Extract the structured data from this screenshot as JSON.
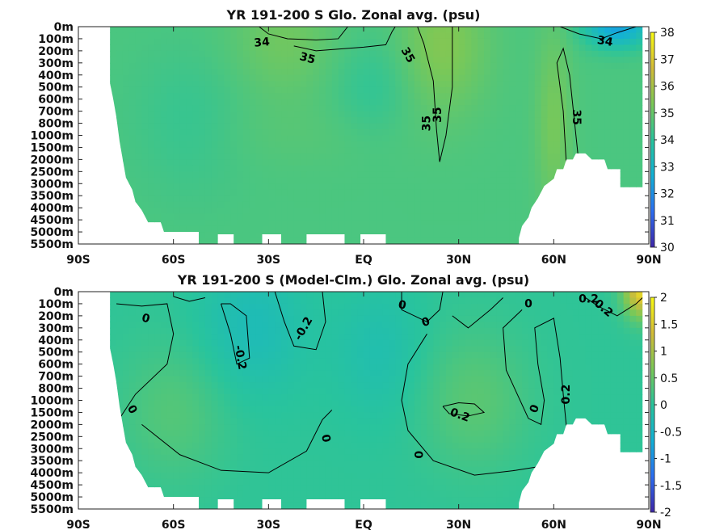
{
  "chart_data": [
    {
      "type": "heatmap",
      "title": "YR 191-200 S Glo. Zonal avg. (psu)",
      "x_ticks": [
        "90S",
        "60S",
        "30S",
        "EQ",
        "30N",
        "60N",
        "90N"
      ],
      "y_ticks": [
        "0m",
        "100m",
        "200m",
        "300m",
        "400m",
        "500m",
        "600m",
        "700m",
        "800m",
        "1000m",
        "1500m",
        "2000m",
        "2500m",
        "3000m",
        "3500m",
        "4000m",
        "4500m",
        "5000m",
        "5500m"
      ],
      "colorbar": {
        "min": 30,
        "max": 38,
        "ticks": [
          "30",
          "31",
          "32",
          "33",
          "34",
          "35",
          "36",
          "37",
          "38"
        ]
      },
      "contour_labels": [
        "34",
        "35",
        "35",
        "35",
        "35",
        "35",
        "34"
      ],
      "colormap": [
        "#3e26a8",
        "#2c6ef2",
        "#12b1d6",
        "#29c49c",
        "#7bc857",
        "#d3bc38",
        "#f9fb15"
      ]
    },
    {
      "type": "heatmap",
      "title": "YR 191-200 S (Model-Clm.) Glo. Zonal avg. (psu)",
      "x_ticks": [
        "90S",
        "60S",
        "30S",
        "EQ",
        "30N",
        "60N",
        "90N"
      ],
      "y_ticks": [
        "0m",
        "100m",
        "200m",
        "300m",
        "400m",
        "500m",
        "600m",
        "700m",
        "800m",
        "1000m",
        "1500m",
        "2000m",
        "2500m",
        "3000m",
        "3500m",
        "4000m",
        "4500m",
        "5000m",
        "5500m"
      ],
      "colorbar": {
        "min": -2,
        "max": 2,
        "ticks": [
          "-2",
          "-1.5",
          "-1",
          "-0.5",
          "0",
          "0.5",
          "1",
          "1.5",
          "2"
        ]
      },
      "contour_labels": [
        "0",
        "0",
        "-0.2",
        "-0.2",
        "0",
        "0",
        "0",
        "0",
        "0.2",
        "0",
        "0.2",
        "0.2",
        "0.2",
        "0"
      ],
      "colormap": [
        "#3e26a8",
        "#2c6ef2",
        "#12b1d6",
        "#29c49c",
        "#7bc857",
        "#d3bc38",
        "#f9fb15"
      ]
    }
  ]
}
